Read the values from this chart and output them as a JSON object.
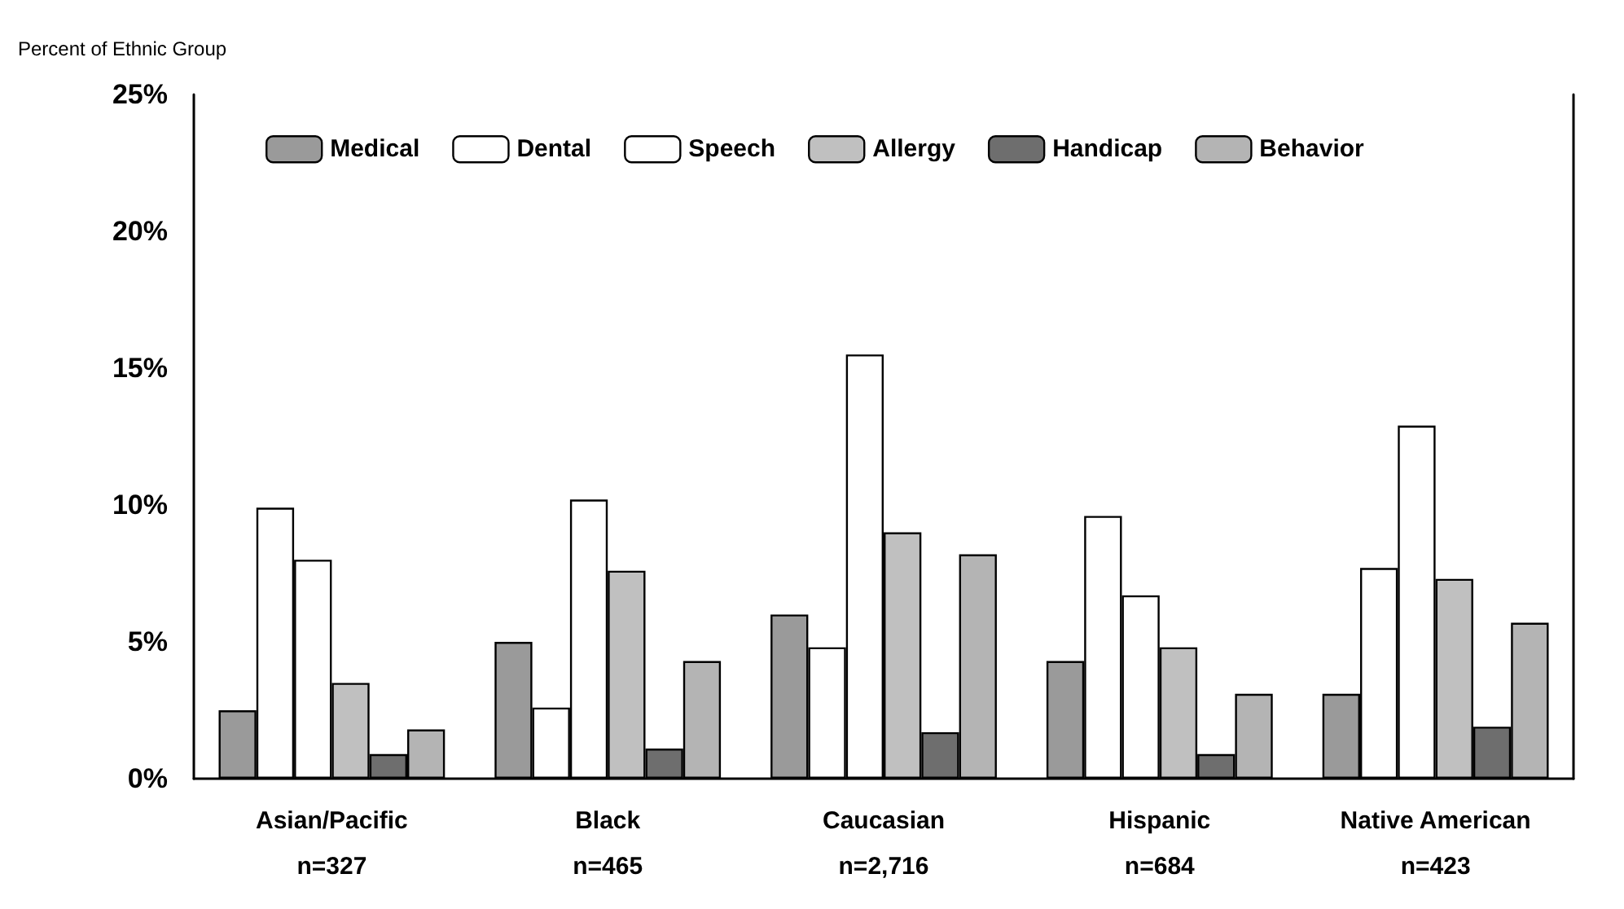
{
  "chart_data": {
    "type": "bar",
    "ylabel": "Percent of Ethnic Group",
    "categories": [
      "Asian/Pacific\nn=327",
      "Black\nn=465",
      "Caucasian\nn=2,716",
      "Hispanic\nn=684",
      "Native American\nn=423"
    ],
    "series": [
      {
        "name": "Medical",
        "color": "#9a9a9a",
        "values": [
          2.5,
          5.0,
          6.0,
          4.3,
          3.1
        ]
      },
      {
        "name": "Dental",
        "color": "#ffffff",
        "values": [
          9.9,
          2.6,
          4.8,
          9.6,
          7.7
        ]
      },
      {
        "name": "Speech",
        "color": "#ffffff",
        "values": [
          8.0,
          10.2,
          15.5,
          6.7,
          12.9
        ]
      },
      {
        "name": "Allergy",
        "color": "#c0c0c0",
        "values": [
          3.5,
          7.6,
          9.0,
          4.8,
          7.3
        ]
      },
      {
        "name": "Handicap",
        "color": "#6e6e6e",
        "values": [
          0.9,
          1.1,
          1.7,
          0.9,
          1.9
        ]
      },
      {
        "name": "Behavior",
        "color": "#b4b4b4",
        "values": [
          1.8,
          4.3,
          8.2,
          3.1,
          5.7
        ]
      }
    ],
    "ylim": [
      0,
      25
    ],
    "yticks": [
      {
        "value": 0,
        "label": "0%"
      },
      {
        "value": 5,
        "label": "5%"
      },
      {
        "value": 10,
        "label": "10%"
      },
      {
        "value": 15,
        "label": "15%"
      },
      {
        "value": 20,
        "label": "20%"
      },
      {
        "value": 25,
        "label": "25%"
      }
    ],
    "grid": false,
    "legend": "top"
  }
}
